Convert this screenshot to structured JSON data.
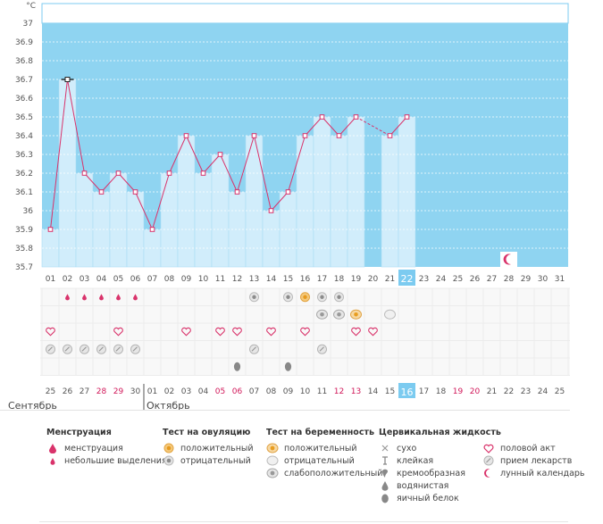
{
  "chart_data": {
    "type": "line",
    "unit_label": "°C",
    "ylim": [
      35.7,
      37.0
    ],
    "y_ticks": [
      "37",
      "36.9",
      "36.8",
      "36.7",
      "36.6",
      "36.5",
      "36.4",
      "36.3",
      "36.2",
      "36.1",
      "36",
      "35.9",
      "35.8",
      "35.7"
    ],
    "cycle_days": [
      "01",
      "02",
      "03",
      "04",
      "05",
      "06",
      "07",
      "08",
      "09",
      "10",
      "11",
      "12",
      "13",
      "14",
      "15",
      "16",
      "17",
      "18",
      "19",
      "20",
      "21",
      "22",
      "23",
      "24",
      "25",
      "26",
      "27",
      "28",
      "29",
      "30",
      "31"
    ],
    "temperatures": [
      35.9,
      36.7,
      36.2,
      36.1,
      36.2,
      36.1,
      35.9,
      36.2,
      36.4,
      36.2,
      36.3,
      36.1,
      36.4,
      36.0,
      36.1,
      36.4,
      36.5,
      36.4,
      36.5,
      null,
      36.4,
      36.5,
      null,
      null,
      null,
      null,
      null,
      null,
      null,
      null,
      null
    ],
    "dashed_segments": [
      [
        19,
        21
      ]
    ],
    "max_marker_day": 2,
    "current_day": 22,
    "moon_day": 28,
    "calendar_dates": [
      "25",
      "26",
      "27",
      "28",
      "29",
      "30",
      "01",
      "02",
      "03",
      "04",
      "05",
      "06",
      "07",
      "08",
      "09",
      "10",
      "11",
      "12",
      "13",
      "14",
      "15",
      "16",
      "17",
      "18",
      "19",
      "20",
      "21",
      "22",
      "23",
      "24",
      "25"
    ],
    "red_date_indices": [
      3,
      4,
      10,
      11,
      17,
      18,
      24,
      25
    ],
    "month_labels": [
      "Сентябрь",
      "Октябрь"
    ],
    "month_split_index": 6,
    "rows": {
      "menstruation": [
        2,
        3,
        4,
        5,
        6
      ],
      "ovulation_positive": [
        16
      ],
      "ovulation_negative": [
        13,
        15,
        17,
        18
      ],
      "pregnancy_positive": [
        19
      ],
      "pregnancy_weak": [
        17,
        18
      ],
      "pregnancy_negative": [
        21
      ],
      "intercourse": [
        1,
        5,
        9,
        11,
        12,
        14,
        16,
        19,
        20
      ],
      "medication": [
        1,
        2,
        3,
        4,
        5,
        6,
        13,
        17
      ],
      "mucus_eggwhite": [
        12,
        15
      ]
    }
  },
  "legend": {
    "menstruation": {
      "title": "Менструация",
      "items": [
        "менструация",
        "небольшие выделения"
      ]
    },
    "ovulation": {
      "title": "Тест на овуляцию",
      "items": [
        "положительный",
        "отрицательный"
      ]
    },
    "pregnancy": {
      "title": "Тест на беременность",
      "items": [
        "положительный",
        "отрицательный",
        "слабоположительный"
      ]
    },
    "mucus": {
      "title": "Цервикальная жидкость",
      "items": [
        "сухо",
        "клейкая",
        "кремообразная",
        "водянистая",
        "яичный белок"
      ]
    },
    "other": {
      "items": [
        "половой акт",
        "прием лекарств",
        "лунный календарь"
      ]
    }
  },
  "colors": {
    "sky": "#8fd4f1",
    "bar": "#d1edfb",
    "bar_edge": "#a9dcf5",
    "line": "#d9336b",
    "current": "#7ccbf0",
    "red_text": "#d1185a"
  }
}
